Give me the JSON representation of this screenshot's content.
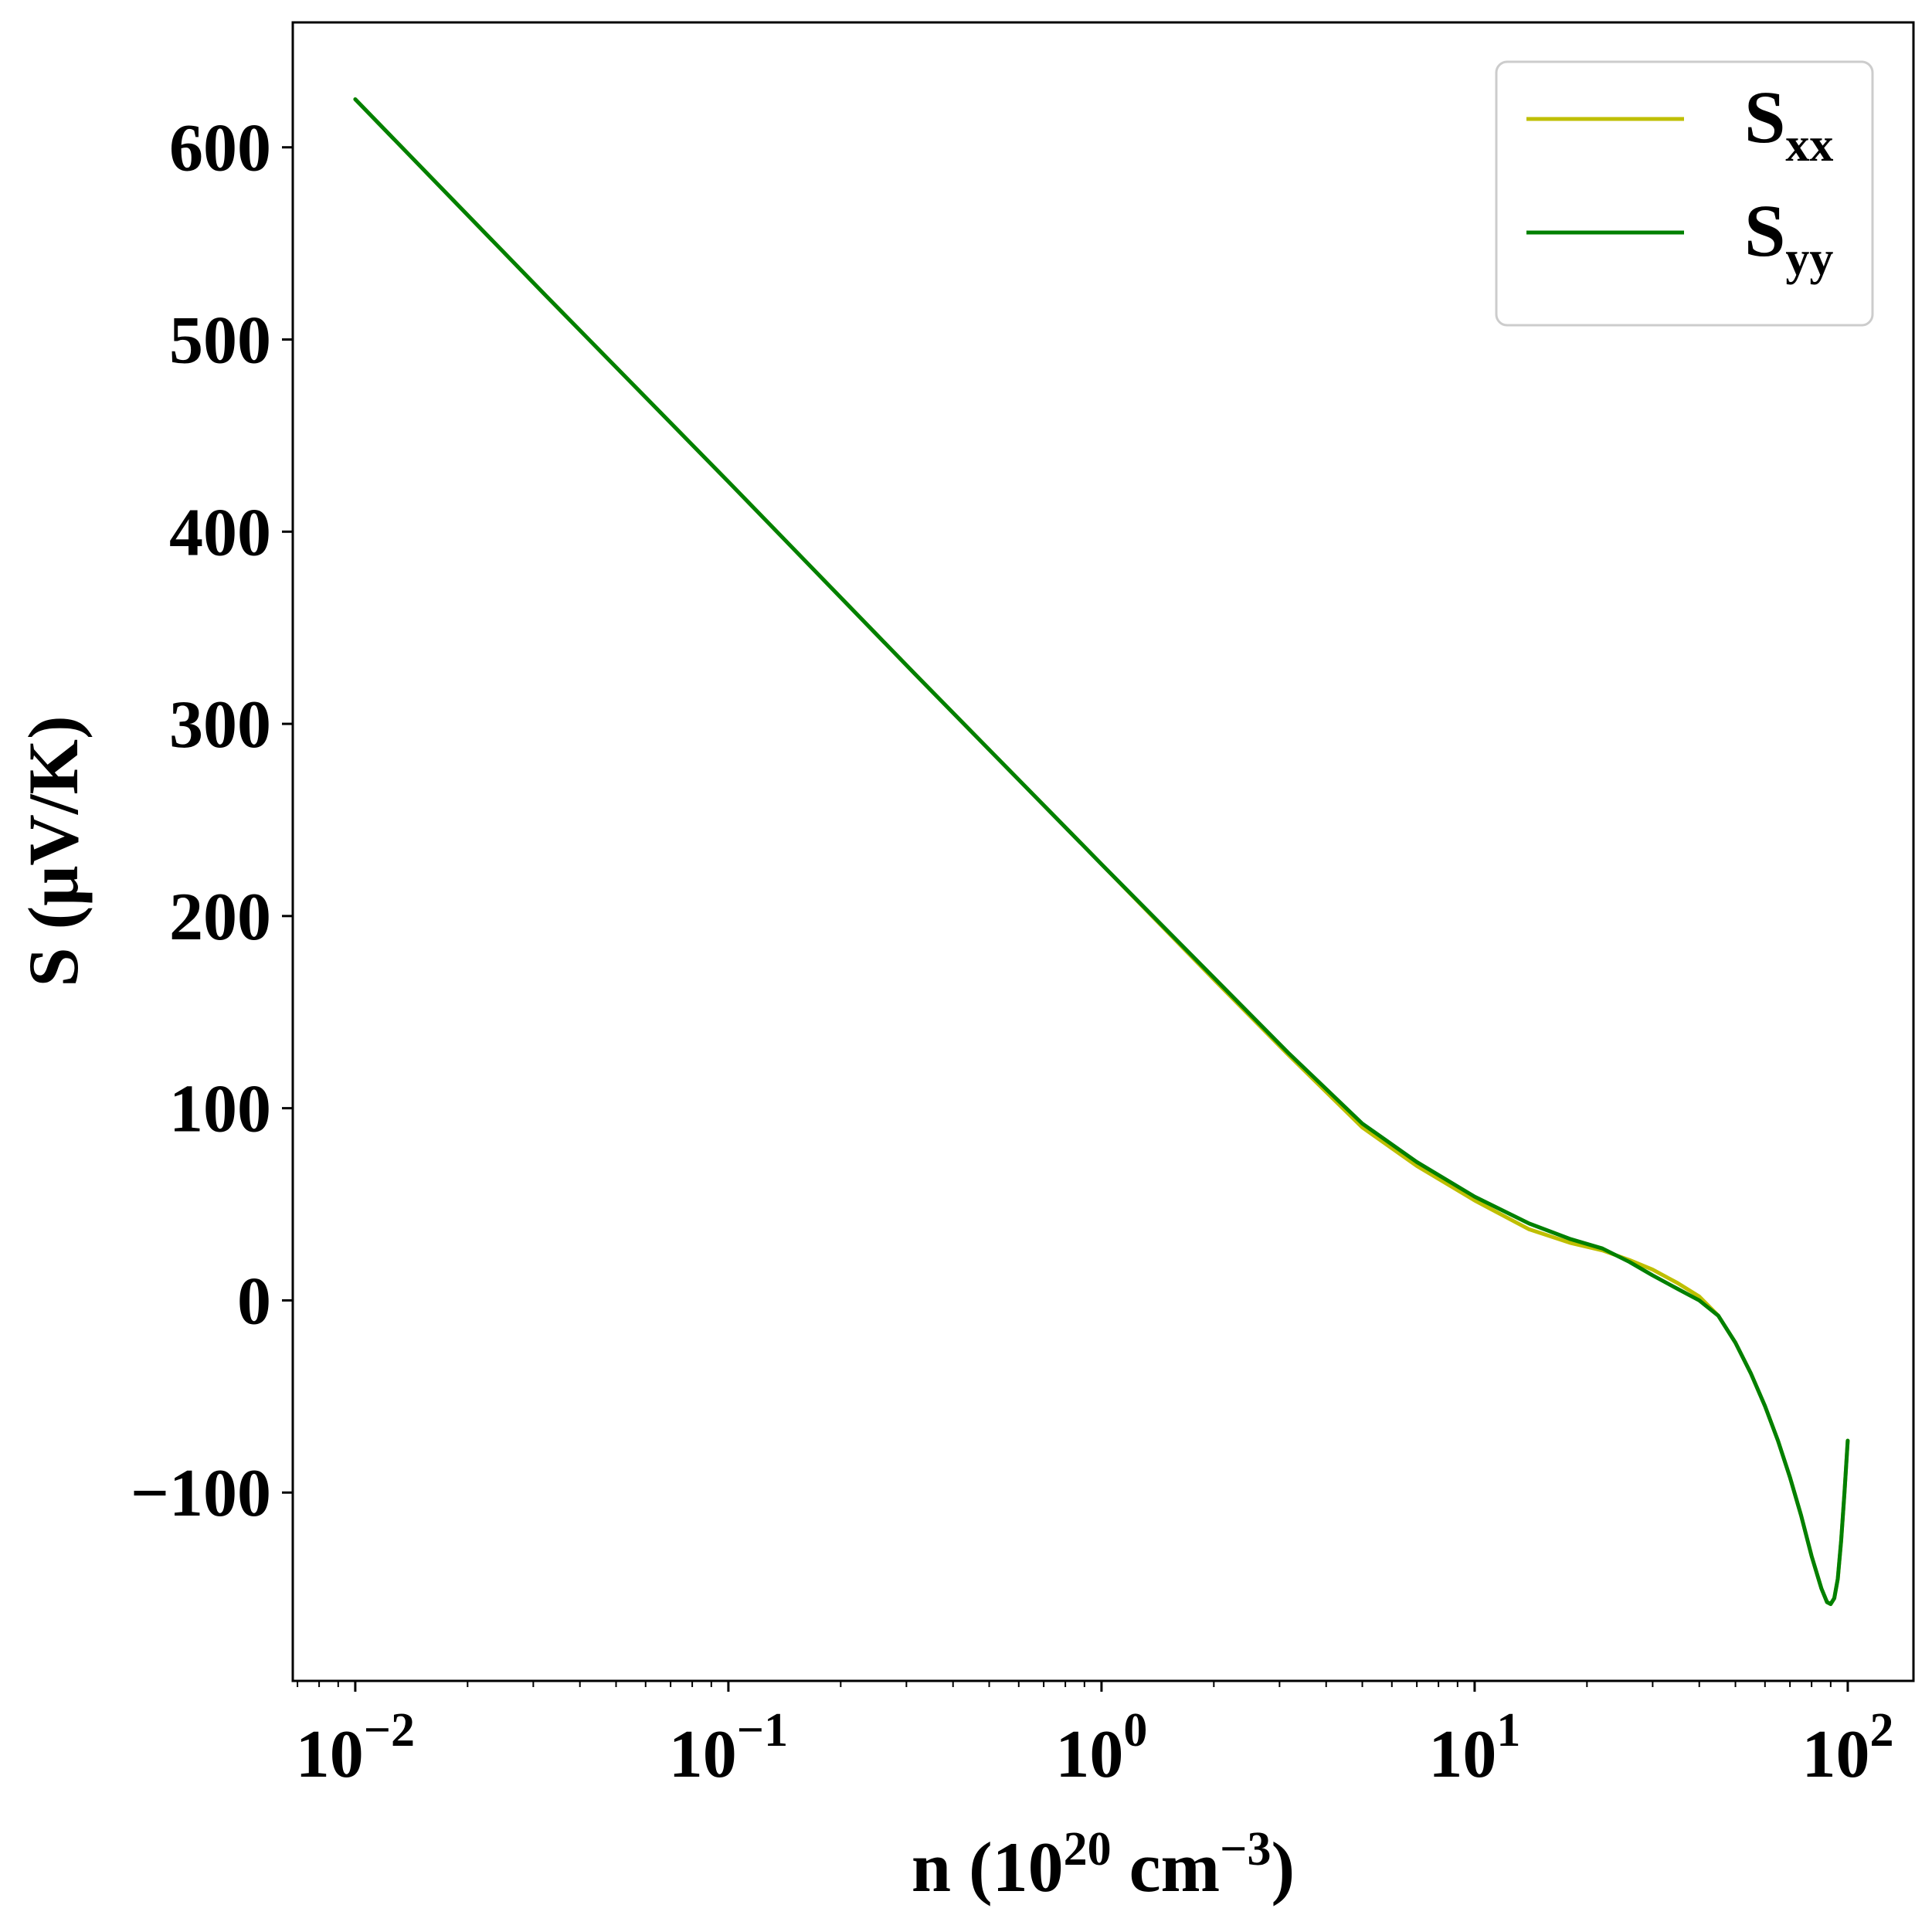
{
  "chart_data": {
    "type": "line",
    "xscale": "log",
    "xlim": [
      0.0068,
      150
    ],
    "ylim": [
      -198,
      665
    ],
    "xlabel": {
      "prefix": "n (10",
      "sup1": "20",
      "mid": " cm",
      "sup2": "−3",
      "suffix": ")"
    },
    "ylabel": "S (μV/K)",
    "yticks": [
      {
        "value": -100,
        "label": "−100"
      },
      {
        "value": 0,
        "label": "0"
      },
      {
        "value": 100,
        "label": "100"
      },
      {
        "value": 200,
        "label": "200"
      },
      {
        "value": 300,
        "label": "300"
      },
      {
        "value": 400,
        "label": "400"
      },
      {
        "value": 500,
        "label": "500"
      },
      {
        "value": 600,
        "label": "600"
      }
    ],
    "xticks": [
      {
        "value": 0.01,
        "base": "10",
        "exp": "−2"
      },
      {
        "value": 0.1,
        "base": "10",
        "exp": "−1"
      },
      {
        "value": 1,
        "base": "10",
        "exp": "0"
      },
      {
        "value": 10,
        "base": "10",
        "exp": "1"
      },
      {
        "value": 100,
        "base": "10",
        "exp": "2"
      }
    ],
    "grid": false,
    "legend_position": "top-right",
    "series": [
      {
        "name_main": "S",
        "name_sub": "xx",
        "color": "#bfbf00",
        "x": [
          0.01,
          0.0316,
          0.1,
          0.316,
          1,
          2,
          3.16,
          5,
          7,
          10,
          14,
          18,
          22,
          26,
          30,
          35,
          40,
          45,
          50,
          55,
          60,
          65,
          70,
          75,
          80,
          85,
          88,
          90,
          92,
          94,
          96,
          98,
          100
        ],
        "y": [
          625,
          525,
          426,
          326,
          227,
          167,
          128,
          90,
          70,
          52,
          37,
          30,
          26,
          21,
          16,
          9,
          2,
          -8,
          -22,
          -38,
          -55,
          -73,
          -92,
          -112,
          -133,
          -150,
          -157,
          -158,
          -155,
          -145,
          -125,
          -100,
          -73
        ]
      },
      {
        "name_main": "S",
        "name_sub": "yy",
        "color": "#008000",
        "x": [
          0.01,
          0.0316,
          0.1,
          0.316,
          1,
          2,
          3.16,
          5,
          7,
          10,
          14,
          18,
          22,
          26,
          30,
          35,
          40,
          45,
          50,
          55,
          60,
          65,
          70,
          75,
          80,
          85,
          88,
          90,
          92,
          94,
          96,
          98,
          100
        ],
        "y": [
          625,
          525,
          426,
          326,
          227,
          168,
          129,
          92,
          72,
          54,
          40,
          32,
          27,
          20,
          13,
          6,
          0,
          -8,
          -22,
          -38,
          -55,
          -73,
          -92,
          -112,
          -133,
          -150,
          -157,
          -158,
          -155,
          -145,
          -125,
          -100,
          -73
        ]
      }
    ]
  }
}
